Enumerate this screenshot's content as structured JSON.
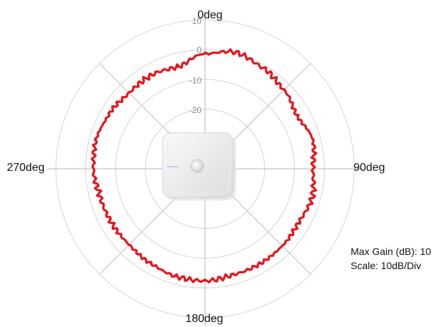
{
  "chart_data": {
    "type": "polar-line",
    "title": "",
    "direction_labels": [
      "0deg",
      "90deg",
      "180deg",
      "270deg"
    ],
    "radial_tick_labels": [
      "10",
      "0",
      "-10",
      "-20"
    ],
    "radial_ticks_db": [
      10,
      0,
      -10,
      -20
    ],
    "rlim_db": [
      -40,
      10
    ],
    "angular_grid_step_deg": 45,
    "grid": true,
    "series": [
      {
        "color": "#e8131c",
        "angle_deg": [
          0,
          15,
          30,
          45,
          60,
          75,
          90,
          105,
          120,
          135,
          150,
          165,
          180,
          195,
          210,
          225,
          240,
          255,
          270,
          285,
          300,
          315,
          330,
          345,
          360
        ],
        "gain_db": [
          -1.4,
          0.4,
          -1.0,
          -2.6,
          -4.4,
          -2.6,
          -3.8,
          -2.8,
          -3.8,
          -3.4,
          -3.2,
          -3.2,
          -2.4,
          -2.6,
          -3.4,
          -4.0,
          -3.8,
          -3.6,
          -2.6,
          -2.2,
          -3.0,
          -4.0,
          -3.8,
          -4.6,
          -1.4
        ]
      }
    ]
  },
  "info": {
    "max_gain": "Max Gain (dB): 10",
    "scale": "Scale: 10dB/Div"
  }
}
